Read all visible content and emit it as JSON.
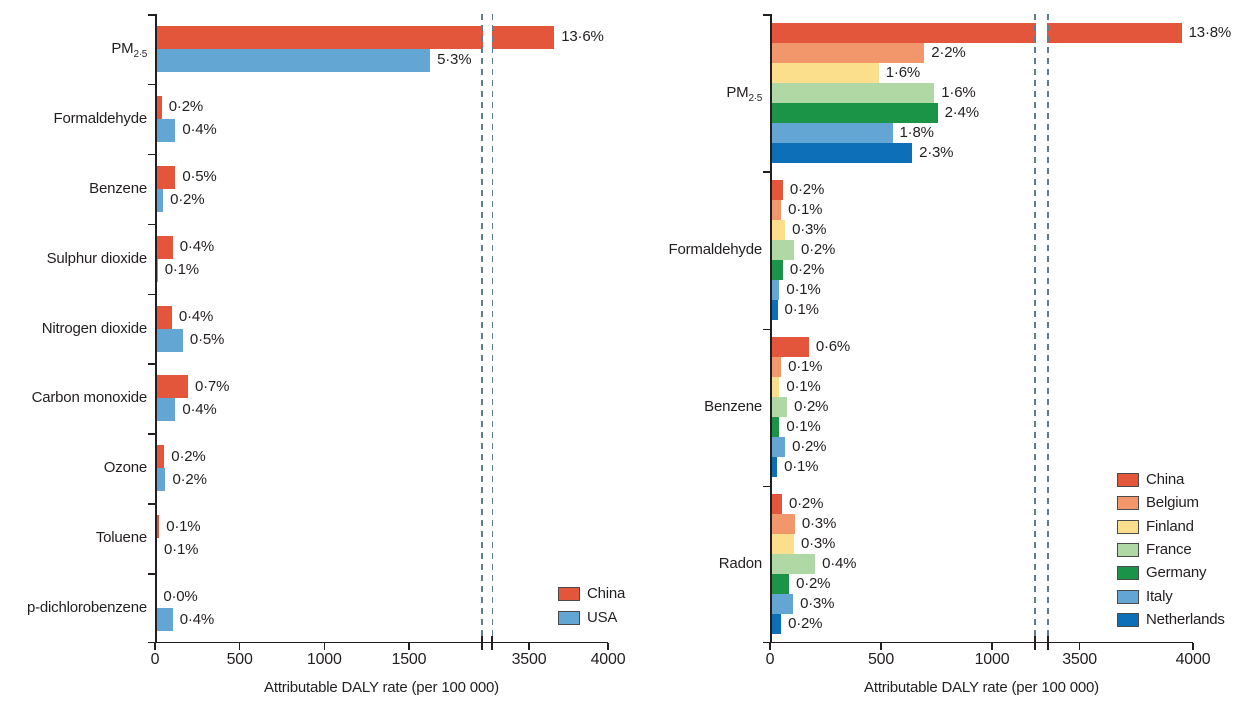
{
  "figure": {
    "background_color": "#FFFFFF",
    "text_color": "#231F20",
    "axis_color": "#231F20",
    "break_line_color": "#5F7D8C",
    "x_axis_title": "Attributable DALY rate (per 100 000)"
  },
  "chart_data": [
    {
      "id": "left-chart-china-vs-usa",
      "type": "bar",
      "orientation": "horizontal",
      "xlabel": "Attributable DALY rate (per 100 000)",
      "x_tick_labels": [
        "0",
        "500",
        "1000",
        "1500",
        "3500",
        "4000"
      ],
      "x_tick_values": [
        0,
        500,
        1000,
        1500,
        3500,
        4000
      ],
      "xlim": [
        0,
        4100
      ],
      "axis_break": {
        "from": 1900,
        "to": 3300
      },
      "grid": false,
      "legend_position": "inside-bottom-right",
      "categories": [
        {
          "text": "PM",
          "sub": "2·5"
        },
        {
          "text": "Formaldehyde"
        },
        {
          "text": "Benzene"
        },
        {
          "text": "Sulphur dioxide"
        },
        {
          "text": "Nitrogen dioxide"
        },
        {
          "text": "Carbon monoxide"
        },
        {
          "text": "Ozone"
        },
        {
          "text": "Toluene"
        },
        {
          "text": "p-dichlorobenzene"
        }
      ],
      "series": [
        {
          "name": "China",
          "color": "#E4563B",
          "values": [
            3660,
            40,
            120,
            105,
            100,
            195,
            55,
            25,
            8
          ],
          "labels": [
            "13·6%",
            "0·2%",
            "0·5%",
            "0·4%",
            "0·4%",
            "0·7%",
            "0·2%",
            "0·1%",
            "0·0%"
          ]
        },
        {
          "name": "USA",
          "color": "#63A6D4",
          "values": [
            1625,
            120,
            48,
            16,
            165,
            120,
            62,
            12,
            105
          ],
          "labels": [
            "5·3%",
            "0·4%",
            "0·2%",
            "0·1%",
            "0·5%",
            "0·4%",
            "0·2%",
            "0·1%",
            "0·4%"
          ]
        }
      ],
      "legend": [
        {
          "label": "China",
          "color": "#E4563B"
        },
        {
          "label": "USA",
          "color": "#63A6D4"
        }
      ]
    },
    {
      "id": "right-chart-china-vs-europe",
      "type": "bar",
      "orientation": "horizontal",
      "xlabel": "Attributable DALY rate (per 100 000)",
      "x_tick_labels": [
        "0",
        "500",
        "1000",
        "3500",
        "4000"
      ],
      "x_tick_values": [
        0,
        500,
        1000,
        3500,
        4000
      ],
      "xlim": [
        0,
        4100
      ],
      "axis_break": {
        "from": 1190,
        "to": 3340
      },
      "grid": false,
      "legend_position": "inside-right-lower",
      "categories": [
        {
          "text": "PM",
          "sub": "2·5"
        },
        {
          "text": "Formaldehyde"
        },
        {
          "text": "Benzene"
        },
        {
          "text": "Radon"
        }
      ],
      "series": [
        {
          "name": "China",
          "color": "#E4563B",
          "values": [
            3950,
            58,
            175,
            54
          ],
          "labels": [
            "13·8%",
            "0·2%",
            "0·6%",
            "0·2%"
          ]
        },
        {
          "name": "Belgium",
          "color": "#F2966C",
          "values": [
            695,
            50,
            50,
            112
          ],
          "labels": [
            "2·2%",
            "0·1%",
            "0·1%",
            "0·3%"
          ]
        },
        {
          "name": "Finland",
          "color": "#FCDF8D",
          "values": [
            490,
            68,
            42,
            108
          ],
          "labels": [
            "1·6%",
            "0·3%",
            "0·1%",
            "0·3%"
          ]
        },
        {
          "name": "France",
          "color": "#B0D8A5",
          "values": [
            740,
            108,
            77,
            203
          ],
          "labels": [
            "1·6%",
            "0·2%",
            "0·2%",
            "0·4%"
          ]
        },
        {
          "name": "Germany",
          "color": "#1B9447",
          "values": [
            755,
            58,
            42,
            86
          ],
          "labels": [
            "2·4%",
            "0·2%",
            "0·1%",
            "0·2%"
          ]
        },
        {
          "name": "Italy",
          "color": "#63A6D4",
          "values": [
            552,
            42,
            68,
            104
          ],
          "labels": [
            "1·8%",
            "0·1%",
            "0·2%",
            "0·3%"
          ]
        },
        {
          "name": "Netherlands",
          "color": "#0D6FB8",
          "values": [
            640,
            34,
            32,
            50
          ],
          "labels": [
            "2·3%",
            "0·1%",
            "0·1%",
            "0·2%"
          ]
        }
      ],
      "legend": [
        {
          "label": "China",
          "color": "#E4563B"
        },
        {
          "label": "Belgium",
          "color": "#F2966C"
        },
        {
          "label": "Finland",
          "color": "#FCDF8D"
        },
        {
          "label": "France",
          "color": "#B0D8A5"
        },
        {
          "label": "Germany",
          "color": "#1B9447"
        },
        {
          "label": "Italy",
          "color": "#63A6D4"
        },
        {
          "label": "Netherlands",
          "color": "#0D6FB8"
        }
      ]
    }
  ]
}
